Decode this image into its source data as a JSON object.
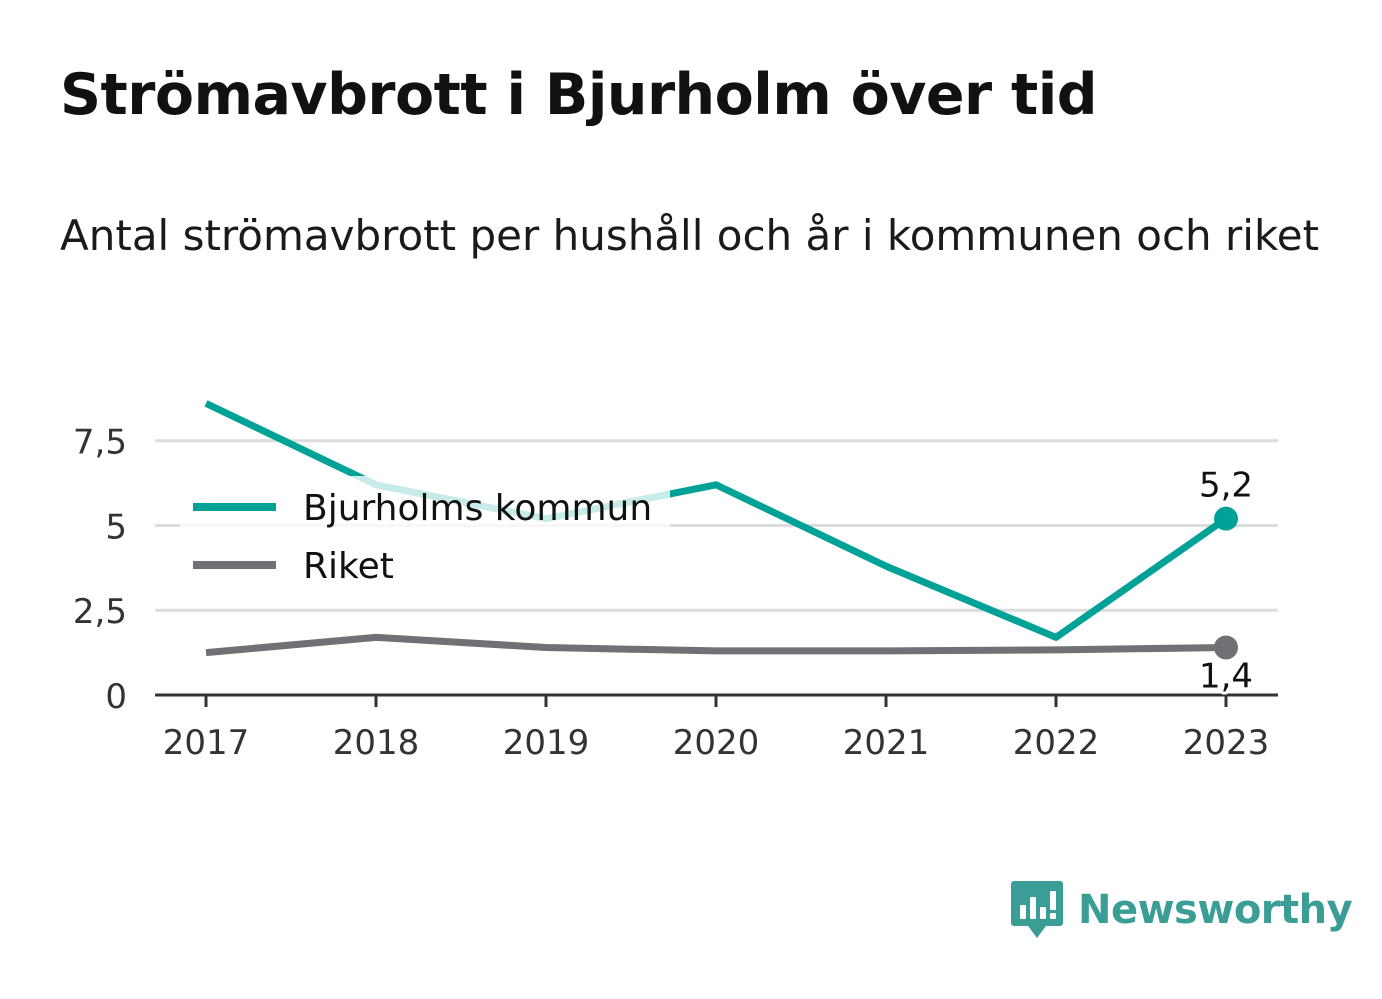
{
  "title": "Strömavbrott i Bjurholm över tid",
  "subtitle": "Antal strömavbrott per hushåll och år i kommunen och riket",
  "brand": {
    "name": "Newsworthy",
    "icon": "newsworthy-logo-icon",
    "color": "#3a9e97"
  },
  "chart_data": {
    "type": "line",
    "x": [
      "2017",
      "2018",
      "2019",
      "2020",
      "2021",
      "2022",
      "2023"
    ],
    "yticks": [
      0,
      2.5,
      5,
      7.5
    ],
    "ytick_labels": [
      "0",
      "2,5",
      "5",
      "7,5"
    ],
    "ylim": [
      0,
      8.7
    ],
    "grid": true,
    "legend_placement": "top-left",
    "series": [
      {
        "name": "Bjurholms kommun",
        "color": "#00a298",
        "values": [
          8.6,
          6.2,
          5.2,
          6.2,
          3.8,
          1.7,
          5.2
        ],
        "end_label": "5,2"
      },
      {
        "name": "Riket",
        "color": "#707075",
        "values": [
          1.25,
          1.7,
          1.4,
          1.3,
          1.3,
          1.33,
          1.4
        ],
        "end_label": "1,4"
      }
    ]
  }
}
